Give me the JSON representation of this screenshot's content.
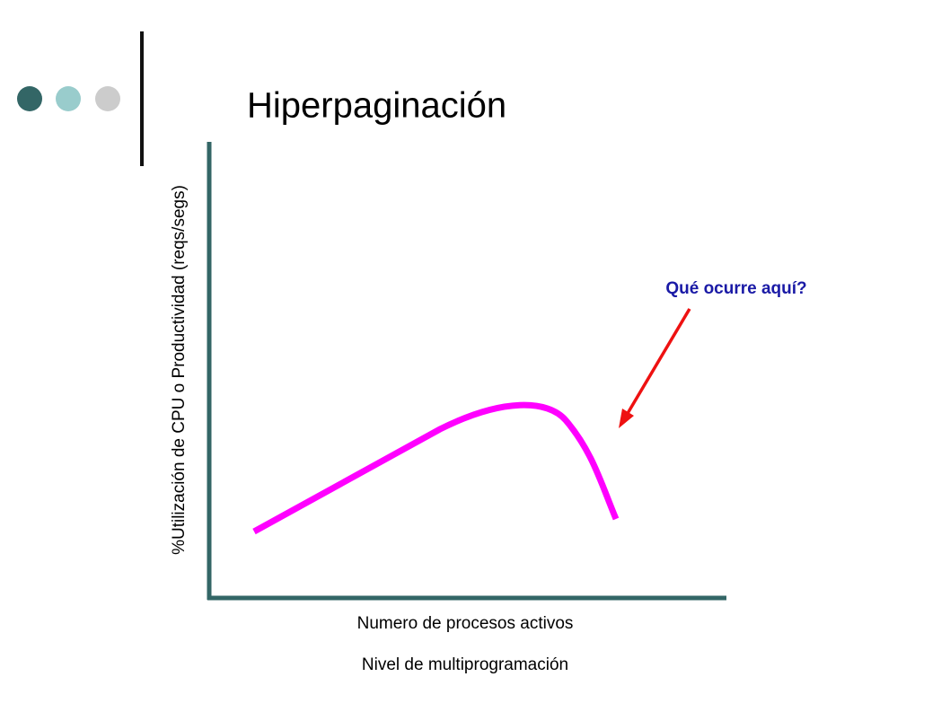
{
  "title": "Hiperpaginación",
  "y_axis_label": "%Utilización de CPU o Productividad (reqs/segs)",
  "x_axis_labels": [
    "Numero de procesos activos",
    "Nivel de multiprogramación"
  ],
  "annotation": "Qué ocurre aquí?"
}
